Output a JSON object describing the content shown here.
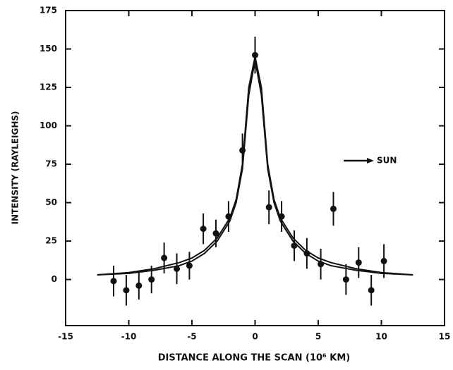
{
  "chart_data": {
    "type": "scatter",
    "x_label": "DISTANCE ALONG THE SCAN (10⁶ KM)",
    "y_label": "INTENSITY (RAYLEIGHS)",
    "annotation": "SUN",
    "color": "#111111",
    "xlim": [
      -15,
      15
    ],
    "ylim": [
      -30,
      175
    ],
    "xticks": [
      -15,
      -10,
      -5,
      0,
      5,
      10,
      15
    ],
    "yticks": [
      0,
      25,
      50,
      75,
      100,
      125,
      150,
      175
    ],
    "points": {
      "x": [
        -11.2,
        -10.2,
        -9.2,
        -8.2,
        -7.2,
        -6.2,
        -5.2,
        -4.1,
        -3.1,
        -2.1,
        -1.0,
        0,
        1.1,
        2.1,
        3.1,
        4.1,
        5.2,
        6.2,
        7.2,
        8.2,
        9.2,
        10.2
      ],
      "values": [
        -1,
        -7,
        -4,
        0,
        14,
        7,
        9,
        33,
        30,
        41,
        84,
        146,
        47,
        41,
        22,
        17,
        10,
        46,
        0,
        11,
        -7,
        12
      ],
      "errors": [
        10,
        10,
        9,
        9,
        10,
        10,
        9,
        10,
        9,
        10,
        11,
        12,
        11,
        10,
        10,
        10,
        10,
        11,
        10,
        10,
        10,
        11
      ]
    },
    "curves": [
      {
        "x": [
          -12.5,
          -10,
          -8,
          -6,
          -5,
          -4,
          -3,
          -2,
          -1.5,
          -1,
          -0.5,
          0,
          0.5,
          1,
          1.5,
          2,
          3,
          4,
          5,
          6,
          8,
          10,
          12.5
        ],
        "values": [
          3,
          4.5,
          7,
          11,
          14,
          19,
          27,
          40,
          52,
          75,
          125,
          145,
          125,
          75,
          52,
          40,
          27,
          19,
          14,
          11,
          7,
          4.5,
          3
        ]
      },
      {
        "x": [
          -12.5,
          -10,
          -8,
          -6,
          -5,
          -4,
          -3,
          -2,
          -1.5,
          -1,
          -0.5,
          0,
          0.5,
          1,
          1.5,
          2,
          3,
          4,
          5,
          6,
          8,
          10,
          12.5
        ],
        "values": [
          3,
          4,
          6,
          9,
          12,
          17,
          25,
          38,
          50,
          72,
          120,
          143,
          120,
          72,
          50,
          38,
          25,
          17,
          12,
          9,
          6,
          4,
          3
        ]
      }
    ]
  }
}
